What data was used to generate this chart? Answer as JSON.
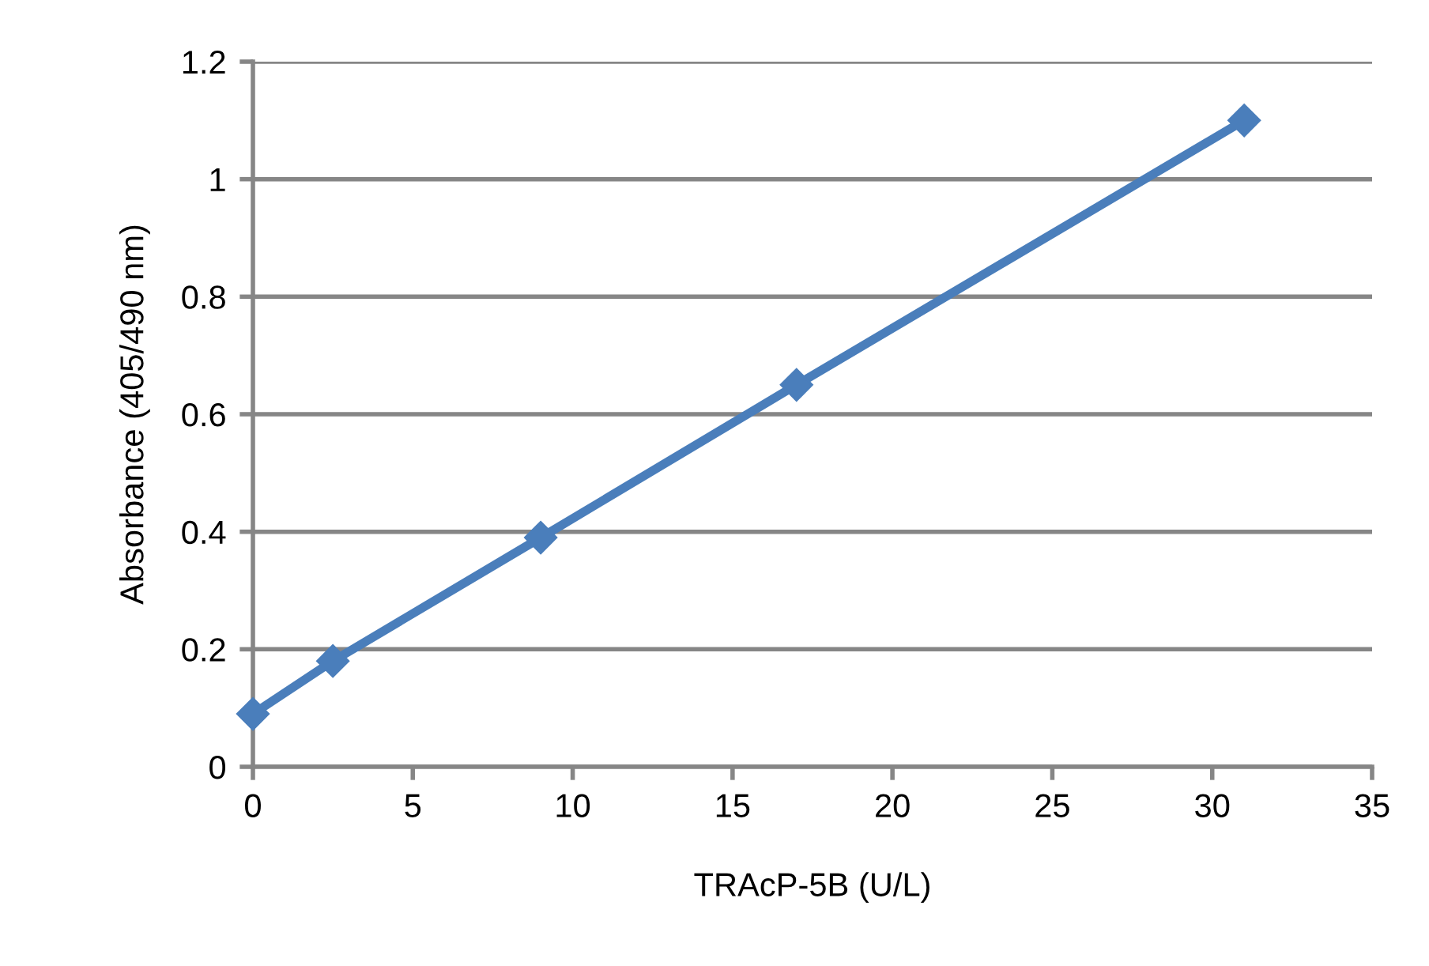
{
  "chart_data": {
    "type": "line",
    "xlabel": "TRAcP-5B (U/L)",
    "ylabel": "Absorbance (405/490 nm)",
    "series": [
      {
        "x": [
          0,
          2.5,
          9,
          17,
          31
        ],
        "values": [
          0.09,
          0.18,
          0.39,
          0.65,
          1.1
        ],
        "color": "#4a7ebb"
      }
    ],
    "xlim": [
      0,
      35
    ],
    "xticks": [
      0,
      5,
      10,
      15,
      20,
      25,
      30,
      35
    ],
    "ylim": [
      0,
      1.2
    ],
    "yticks": [
      0,
      0.2,
      0.4,
      0.6,
      0.8,
      1,
      1.2
    ],
    "grid": "y",
    "marker": "diamond",
    "line_style": "solid"
  }
}
